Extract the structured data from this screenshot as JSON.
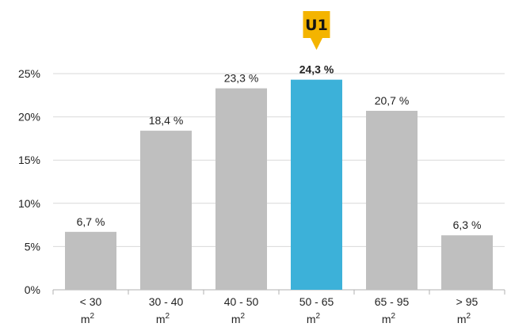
{
  "chart_data": {
    "type": "bar",
    "categories": [
      {
        "line1": "< 30",
        "line2": "m",
        "sup": "2"
      },
      {
        "line1": "30 - 40",
        "line2": "m",
        "sup": "2"
      },
      {
        "line1": "40 - 50",
        "line2": "m",
        "sup": "2"
      },
      {
        "line1": "50 - 65",
        "line2": "m",
        "sup": "2"
      },
      {
        "line1": "65 - 95",
        "line2": "m",
        "sup": "2"
      },
      {
        "line1": "> 95",
        "line2": "m",
        "sup": "2"
      }
    ],
    "values": [
      6.7,
      18.4,
      23.3,
      24.3,
      20.7,
      6.3
    ],
    "data_labels": [
      "6,7 %",
      "18,4 %",
      "23,3 %",
      "24,3 %",
      "20,7 %",
      "6,3 %"
    ],
    "highlight_index": 3,
    "ylim": [
      0,
      25
    ],
    "yticks": [
      0,
      5,
      10,
      15,
      20,
      25
    ],
    "ytick_labels": [
      "0%",
      "5%",
      "10%",
      "15%",
      "20%",
      "25%"
    ],
    "grid": true,
    "title": "",
    "xlabel": "",
    "ylabel": ""
  },
  "marker": {
    "text": "U1",
    "icon": "location-pin-icon"
  },
  "colors": {
    "bar": "#bfbfbf",
    "highlight": "#3cb1d9",
    "marker": "#f4b400",
    "grid": "#d9d9d9",
    "axis": "#b0b0b0"
  }
}
